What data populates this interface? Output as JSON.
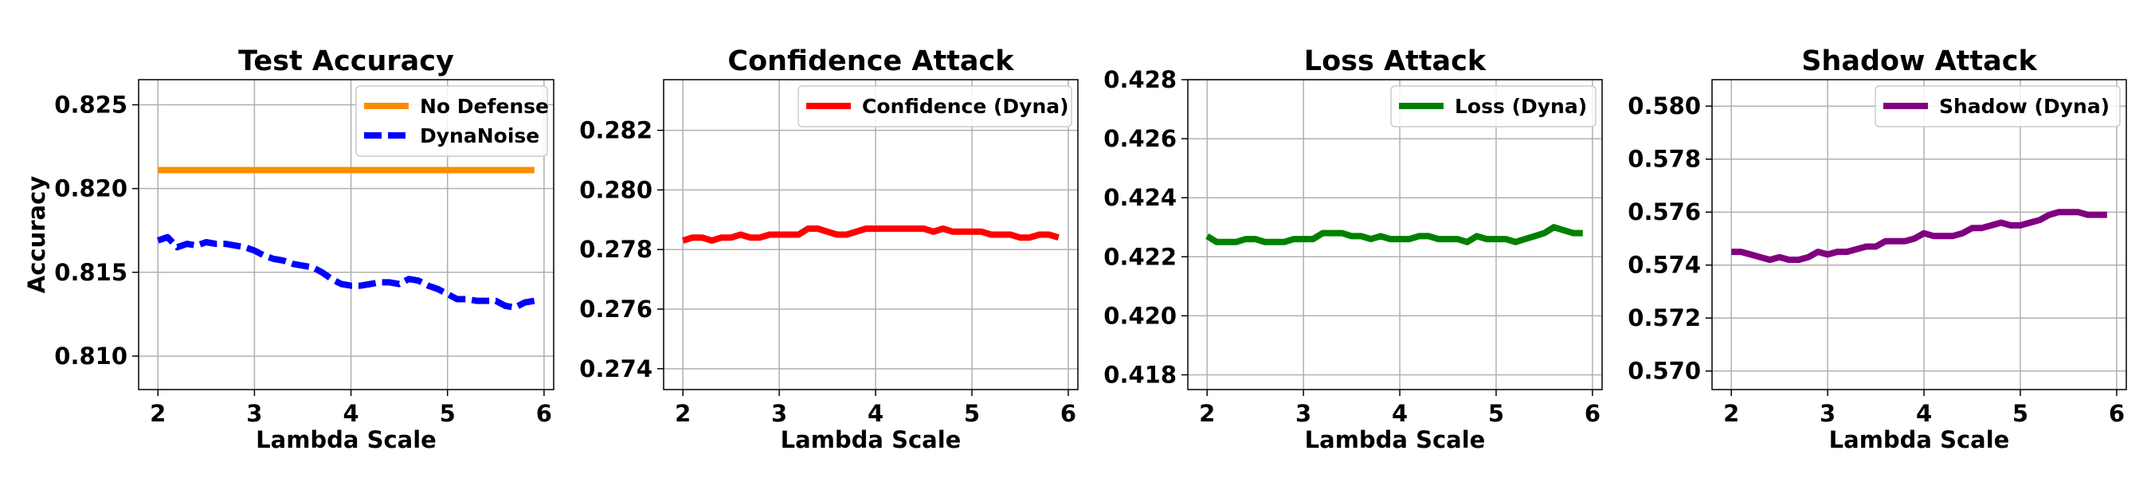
{
  "chart_data": [
    {
      "type": "line",
      "title": "Test Accuracy",
      "xlabel": "Lambda Scale",
      "ylabel": "Accuracy",
      "xlim": [
        1.8,
        6.1
      ],
      "ylim": [
        0.808,
        0.8265
      ],
      "xticks": [
        2,
        3,
        4,
        5,
        6
      ],
      "yticks": [
        0.81,
        0.815,
        0.82,
        0.825
      ],
      "ytick_labels": [
        "0.810",
        "0.815",
        "0.820",
        "0.825"
      ],
      "grid": true,
      "legend_position": "top-right",
      "x": [
        2.0,
        2.1,
        2.2,
        2.3,
        2.4,
        2.5,
        2.6,
        2.7,
        2.8,
        2.9,
        3.0,
        3.1,
        3.2,
        3.3,
        3.4,
        3.5,
        3.6,
        3.7,
        3.8,
        3.9,
        4.0,
        4.1,
        4.2,
        4.3,
        4.4,
        4.5,
        4.6,
        4.7,
        4.8,
        4.9,
        5.0,
        5.1,
        5.2,
        5.3,
        5.4,
        5.5,
        5.6,
        5.7,
        5.8,
        5.9
      ],
      "series": [
        {
          "name": "No Defense",
          "color": "#ff8c00",
          "dashed": false,
          "values": [
            0.8211,
            0.8211,
            0.8211,
            0.8211,
            0.8211,
            0.8211,
            0.8211,
            0.8211,
            0.8211,
            0.8211,
            0.8211,
            0.8211,
            0.8211,
            0.8211,
            0.8211,
            0.8211,
            0.8211,
            0.8211,
            0.8211,
            0.8211,
            0.8211,
            0.8211,
            0.8211,
            0.8211,
            0.8211,
            0.8211,
            0.8211,
            0.8211,
            0.8211,
            0.8211,
            0.8211,
            0.8211,
            0.8211,
            0.8211,
            0.8211,
            0.8211,
            0.8211,
            0.8211,
            0.8211,
            0.8211
          ]
        },
        {
          "name": "DynaNoise",
          "color": "#0000ff",
          "dashed": true,
          "values": [
            0.8169,
            0.8171,
            0.8165,
            0.8167,
            0.8166,
            0.8168,
            0.8167,
            0.8167,
            0.8166,
            0.8165,
            0.8163,
            0.816,
            0.8158,
            0.8157,
            0.8155,
            0.8154,
            0.8153,
            0.815,
            0.8146,
            0.8143,
            0.8142,
            0.8142,
            0.8143,
            0.8144,
            0.8144,
            0.8143,
            0.8146,
            0.8145,
            0.8142,
            0.814,
            0.8137,
            0.8134,
            0.8134,
            0.8133,
            0.8133,
            0.8133,
            0.813,
            0.8129,
            0.8132,
            0.8133
          ]
        }
      ]
    },
    {
      "type": "line",
      "title": "Confidence Attack",
      "xlabel": "Lambda Scale",
      "ylabel": "",
      "xlim": [
        1.8,
        6.1
      ],
      "ylim": [
        0.2733,
        0.2837
      ],
      "xticks": [
        2,
        3,
        4,
        5,
        6
      ],
      "yticks": [
        0.274,
        0.276,
        0.278,
        0.28,
        0.282
      ],
      "ytick_labels": [
        "0.274",
        "0.276",
        "0.278",
        "0.280",
        "0.282"
      ],
      "grid": true,
      "legend_position": "top-right",
      "x": [
        2.0,
        2.1,
        2.2,
        2.3,
        2.4,
        2.5,
        2.6,
        2.7,
        2.8,
        2.9,
        3.0,
        3.1,
        3.2,
        3.3,
        3.4,
        3.5,
        3.6,
        3.7,
        3.8,
        3.9,
        4.0,
        4.1,
        4.2,
        4.3,
        4.4,
        4.5,
        4.6,
        4.7,
        4.8,
        4.9,
        5.0,
        5.1,
        5.2,
        5.3,
        5.4,
        5.5,
        5.6,
        5.7,
        5.8,
        5.9
      ],
      "series": [
        {
          "name": "Confidence (Dyna)",
          "color": "#ff0000",
          "dashed": false,
          "values": [
            0.2783,
            0.2784,
            0.2784,
            0.2783,
            0.2784,
            0.2784,
            0.2785,
            0.2784,
            0.2784,
            0.2785,
            0.2785,
            0.2785,
            0.2785,
            0.2787,
            0.2787,
            0.2786,
            0.2785,
            0.2785,
            0.2786,
            0.2787,
            0.2787,
            0.2787,
            0.2787,
            0.2787,
            0.2787,
            0.2787,
            0.2786,
            0.2787,
            0.2786,
            0.2786,
            0.2786,
            0.2786,
            0.2785,
            0.2785,
            0.2785,
            0.2784,
            0.2784,
            0.2785,
            0.2785,
            0.2784
          ]
        }
      ]
    },
    {
      "type": "line",
      "title": "Loss Attack",
      "xlabel": "Lambda Scale",
      "ylabel": "",
      "xlim": [
        1.8,
        6.1
      ],
      "ylim": [
        0.4175,
        0.428
      ],
      "xticks": [
        2,
        3,
        4,
        5,
        6
      ],
      "yticks": [
        0.418,
        0.42,
        0.422,
        0.424,
        0.426,
        0.428
      ],
      "ytick_labels": [
        "0.418",
        "0.420",
        "0.422",
        "0.424",
        "0.426",
        "0.428"
      ],
      "grid": true,
      "legend_position": "top-right",
      "x": [
        2.0,
        2.1,
        2.2,
        2.3,
        2.4,
        2.5,
        2.6,
        2.7,
        2.8,
        2.9,
        3.0,
        3.1,
        3.2,
        3.3,
        3.4,
        3.5,
        3.6,
        3.7,
        3.8,
        3.9,
        4.0,
        4.1,
        4.2,
        4.3,
        4.4,
        4.5,
        4.6,
        4.7,
        4.8,
        4.9,
        5.0,
        5.1,
        5.2,
        5.3,
        5.4,
        5.5,
        5.6,
        5.7,
        5.8,
        5.9
      ],
      "series": [
        {
          "name": "Loss (Dyna)",
          "color": "#008000",
          "dashed": false,
          "values": [
            0.4227,
            0.4225,
            0.4225,
            0.4225,
            0.4226,
            0.4226,
            0.4225,
            0.4225,
            0.4225,
            0.4226,
            0.4226,
            0.4226,
            0.4228,
            0.4228,
            0.4228,
            0.4227,
            0.4227,
            0.4226,
            0.4227,
            0.4226,
            0.4226,
            0.4226,
            0.4227,
            0.4227,
            0.4226,
            0.4226,
            0.4226,
            0.4225,
            0.4227,
            0.4226,
            0.4226,
            0.4226,
            0.4225,
            0.4226,
            0.4227,
            0.4228,
            0.423,
            0.4229,
            0.4228,
            0.4228
          ]
        }
      ]
    },
    {
      "type": "line",
      "title": "Shadow Attack",
      "xlabel": "Lambda Scale",
      "ylabel": "",
      "xlim": [
        1.8,
        6.1
      ],
      "ylim": [
        0.5693,
        0.581
      ],
      "xticks": [
        2,
        3,
        4,
        5,
        6
      ],
      "yticks": [
        0.57,
        0.572,
        0.574,
        0.576,
        0.578,
        0.58
      ],
      "ytick_labels": [
        "0.570",
        "0.572",
        "0.574",
        "0.576",
        "0.578",
        "0.580"
      ],
      "grid": true,
      "legend_position": "top-right",
      "x": [
        2.0,
        2.1,
        2.2,
        2.3,
        2.4,
        2.5,
        2.6,
        2.7,
        2.8,
        2.9,
        3.0,
        3.1,
        3.2,
        3.3,
        3.4,
        3.5,
        3.6,
        3.7,
        3.8,
        3.9,
        4.0,
        4.1,
        4.2,
        4.3,
        4.4,
        4.5,
        4.6,
        4.7,
        4.8,
        4.9,
        5.0,
        5.1,
        5.2,
        5.3,
        5.4,
        5.5,
        5.6,
        5.7,
        5.8,
        5.9
      ],
      "series": [
        {
          "name": "Shadow (Dyna)",
          "color": "#800080",
          "dashed": false,
          "values": [
            0.5745,
            0.5745,
            0.5744,
            0.5743,
            0.5742,
            0.5743,
            0.5742,
            0.5742,
            0.5743,
            0.5745,
            0.5744,
            0.5745,
            0.5745,
            0.5746,
            0.5747,
            0.5747,
            0.5749,
            0.5749,
            0.5749,
            0.575,
            0.5752,
            0.5751,
            0.5751,
            0.5751,
            0.5752,
            0.5754,
            0.5754,
            0.5755,
            0.5756,
            0.5755,
            0.5755,
            0.5756,
            0.5757,
            0.5759,
            0.576,
            0.576,
            0.576,
            0.5759,
            0.5759,
            0.5759
          ]
        }
      ]
    }
  ]
}
